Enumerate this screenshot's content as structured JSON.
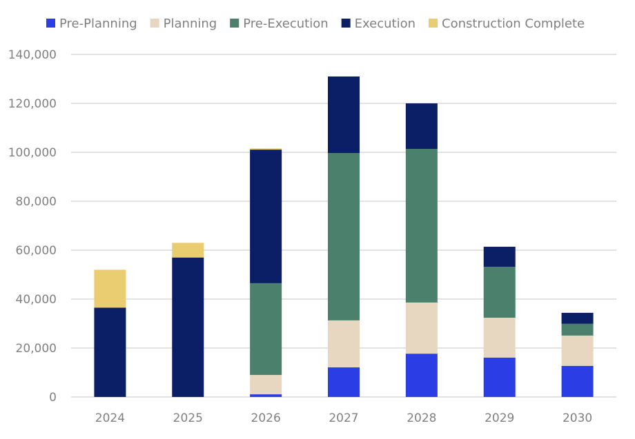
{
  "chart_data": {
    "type": "bar",
    "stacked": true,
    "categories": [
      "2024",
      "2025",
      "2026",
      "2027",
      "2028",
      "2029",
      "2030"
    ],
    "series": [
      {
        "name": "Pre-Planning",
        "color": "#2b3ee6",
        "values": [
          0,
          0,
          1100,
          12100,
          17700,
          16100,
          12700
        ]
      },
      {
        "name": "Planning",
        "color": "#e7d7c1",
        "values": [
          0,
          0,
          7900,
          19200,
          20900,
          16300,
          12400
        ]
      },
      {
        "name": "Pre-Execution",
        "color": "#4a806c",
        "values": [
          0,
          0,
          37500,
          68400,
          62800,
          20800,
          4800
        ]
      },
      {
        "name": "Execution",
        "color": "#0b1f66",
        "values": [
          36500,
          57000,
          54600,
          31300,
          18600,
          8200,
          4500
        ]
      },
      {
        "name": "Construction Complete",
        "color": "#eacd70",
        "values": [
          15500,
          6000,
          500,
          0,
          0,
          0,
          0
        ]
      }
    ],
    "ylim": [
      0,
      140000
    ],
    "yticks": [
      "0",
      "20,000",
      "40,000",
      "60,000",
      "80,000",
      "100,000",
      "120,000",
      "140,000"
    ],
    "grid": true,
    "legend_position": "top"
  }
}
